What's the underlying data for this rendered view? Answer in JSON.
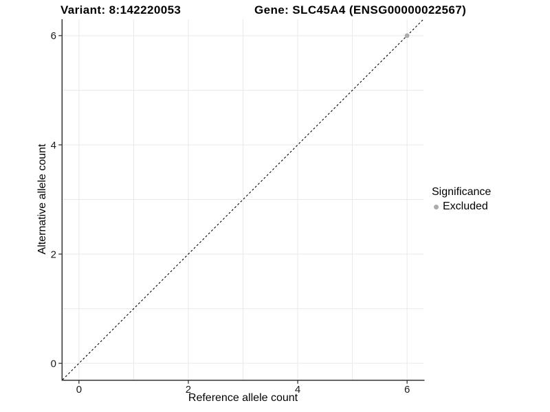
{
  "header": {
    "variant_title": "Variant: 8:142220053",
    "gene_title": "Gene: SLC45A4 (ENSG00000022567)"
  },
  "chart_data": {
    "type": "scatter",
    "title_left": "Variant: 8:142220053",
    "title_right": "Gene: SLC45A4 (ENSG00000022567)",
    "xlabel": "Reference allele count",
    "ylabel": "Alternative allele count",
    "xlim": [
      -0.3,
      6.3
    ],
    "ylim": [
      -0.3,
      6.3
    ],
    "x_ticks": [
      0,
      2,
      4,
      6
    ],
    "y_ticks": [
      0,
      2,
      4,
      6
    ],
    "x_tick_labels": [
      "0",
      "2",
      "4",
      "6"
    ],
    "y_tick_labels": [
      "0",
      "2",
      "4",
      "6"
    ],
    "grid_values": [
      0,
      1,
      2,
      3,
      4,
      5,
      6
    ],
    "grid_on": true,
    "reference_line": {
      "slope": 1,
      "intercept": 0,
      "style": "dashed",
      "color": "#000000"
    },
    "series": [
      {
        "name": "Excluded",
        "color": "#ababab",
        "points": [
          {
            "x": 6,
            "y": 6
          }
        ]
      }
    ],
    "legend": {
      "title": "Significance",
      "position": "right",
      "items": [
        {
          "label": "Excluded",
          "color": "#ababab"
        }
      ]
    }
  },
  "colors": {
    "background": "#ffffff",
    "grid_line": "#e9e9e9",
    "axis_line": "#333333",
    "tick_text": "#1a1a1a",
    "title_text": "#000000"
  }
}
